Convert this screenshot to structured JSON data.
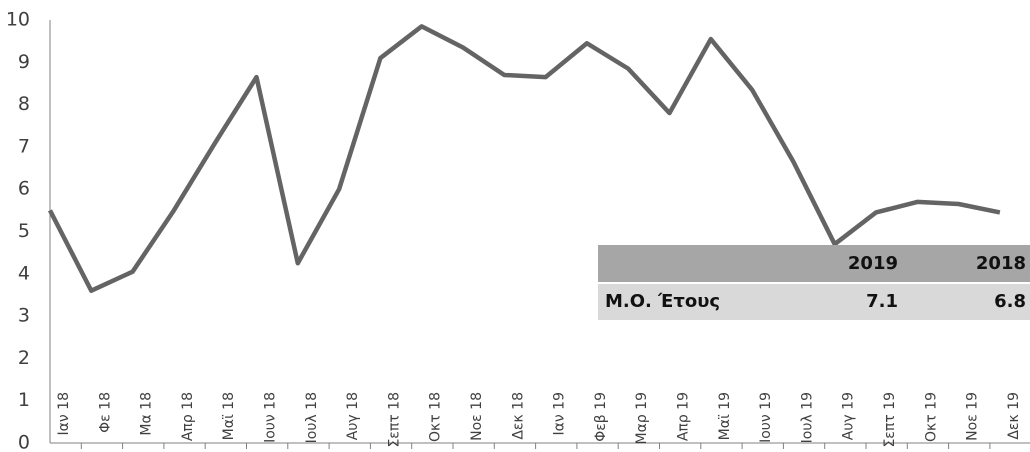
{
  "chart_data": {
    "type": "line",
    "categories": [
      "Ιαν 18",
      "Φε 18",
      "Μα 18",
      "Απρ 18",
      "Μαϊ 18",
      "Ιουν 18",
      "Ιουλ 18",
      "Αυγ 18",
      "Σεπτ 18",
      "Οκτ 18",
      "Νοε 18",
      "Δεκ 18",
      "Ιαν 19",
      "Φεβ 19",
      "Μαρ 19",
      "Απρ 19",
      "Μαϊ 19",
      "Ιουν 19",
      "Ιουλ 19",
      "Αυγ 19",
      "Σεπτ 19",
      "Οκτ 19",
      "Νοε 19",
      "Δεκ 19"
    ],
    "values": [
      5.5,
      3.6,
      4.05,
      5.5,
      7.1,
      8.65,
      4.25,
      6.0,
      9.1,
      9.85,
      9.35,
      8.7,
      8.65,
      9.45,
      8.85,
      7.8,
      9.55,
      8.35,
      6.65,
      4.7,
      5.45,
      5.7,
      5.65,
      5.45
    ],
    "color": "#646464",
    "ylim": [
      0,
      10
    ],
    "yticks": [
      0,
      1,
      2,
      3,
      4,
      5,
      6,
      7,
      8,
      9,
      10
    ],
    "grid": false,
    "table": {
      "columns": [
        "2019",
        "2018"
      ],
      "rows": [
        {
          "label": "Μ.Ο. Έτους",
          "values": [
            7.1,
            6.8
          ]
        }
      ]
    }
  }
}
